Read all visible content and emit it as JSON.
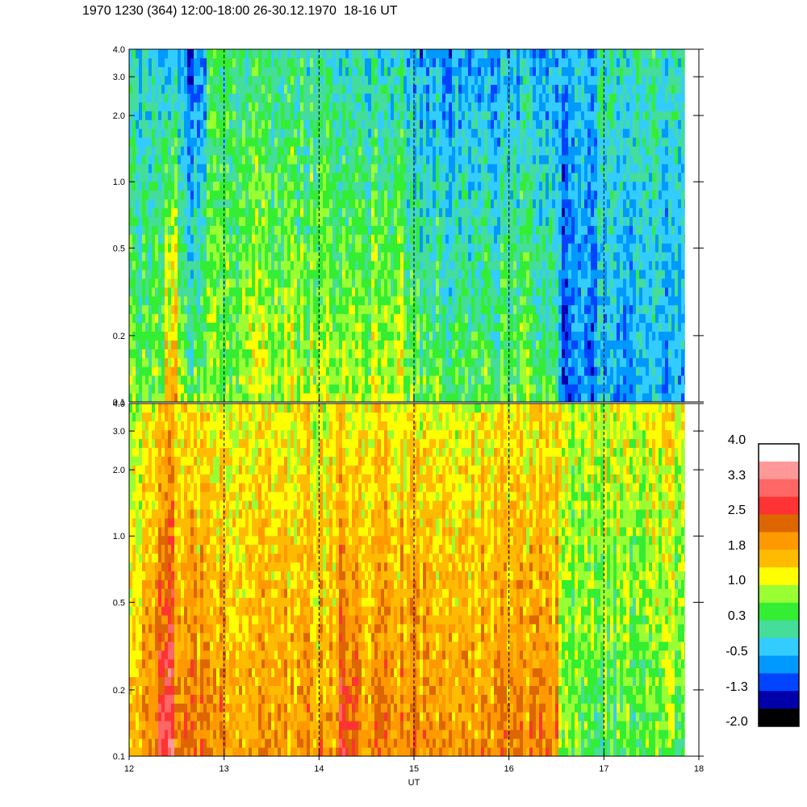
{
  "title": "1970 1230 (364) 12:00-18:00 26-30.12.1970  18-16 UT",
  "chart_data": [
    {
      "type": "heatmap",
      "panel": "upper",
      "x_range": [
        12,
        18
      ],
      "x_ticks": [
        "12",
        "13",
        "14",
        "15",
        "16",
        "17",
        "18"
      ],
      "y_scale": "log",
      "y_range": [
        0.1,
        4.0
      ],
      "y_ticks": [
        "0.1",
        "0.2",
        "0.5",
        "1.0",
        "2.0",
        "3.0",
        "4.0"
      ],
      "dashed_x_lines": [
        13,
        14,
        15,
        16,
        17
      ],
      "data_end_x": 17.85,
      "segments": [
        {
          "x0": 12.0,
          "x1": 12.35,
          "low_level": 0.6,
          "high_level": -0.3
        },
        {
          "x0": 12.35,
          "x1": 12.5,
          "low_level": 1.7,
          "high_level": -0.6
        },
        {
          "x0": 12.5,
          "x1": 12.8,
          "low_level": 0.6,
          "high_level": -1.0
        },
        {
          "x0": 12.8,
          "x1": 13.2,
          "low_level": 0.7,
          "high_level": 0.1
        },
        {
          "x0": 13.2,
          "x1": 14.2,
          "low_level": 0.9,
          "high_level": 0.0
        },
        {
          "x0": 14.2,
          "x1": 14.9,
          "low_level": 1.0,
          "high_level": -0.2
        },
        {
          "x0": 14.9,
          "x1": 15.5,
          "low_level": 0.5,
          "high_level": -0.7
        },
        {
          "x0": 15.5,
          "x1": 16.5,
          "low_level": 0.5,
          "high_level": -0.6
        },
        {
          "x0": 16.5,
          "x1": 16.9,
          "low_level": -1.0,
          "high_level": -0.6
        },
        {
          "x0": 16.9,
          "x1": 17.85,
          "low_level": -0.6,
          "high_level": 0.0
        }
      ]
    },
    {
      "type": "heatmap",
      "panel": "lower",
      "x_range": [
        12,
        18
      ],
      "x_ticks": [
        "12",
        "13",
        "14",
        "15",
        "16",
        "17",
        "18"
      ],
      "xlabel": "UT",
      "y_scale": "log",
      "y_range": [
        0.1,
        4.0
      ],
      "y_ticks": [
        "0.1",
        "0.2",
        "0.5",
        "1.0",
        "2.0",
        "3.0",
        "4.0"
      ],
      "dashed_x_lines": [
        13,
        14,
        15,
        16,
        17
      ],
      "data_end_x": 17.85,
      "segments": [
        {
          "x0": 12.0,
          "x1": 12.3,
          "low_level": 2.0,
          "high_level": 1.0
        },
        {
          "x0": 12.3,
          "x1": 12.45,
          "low_level": 3.0,
          "high_level": 1.5
        },
        {
          "x0": 12.45,
          "x1": 13.0,
          "low_level": 2.2,
          "high_level": 1.2
        },
        {
          "x0": 13.0,
          "x1": 14.2,
          "low_level": 2.0,
          "high_level": 1.2
        },
        {
          "x0": 14.2,
          "x1": 14.4,
          "low_level": 2.8,
          "high_level": 1.3
        },
        {
          "x0": 14.4,
          "x1": 16.5,
          "low_level": 2.1,
          "high_level": 1.2
        },
        {
          "x0": 16.5,
          "x1": 16.8,
          "low_level": 0.5,
          "high_level": 0.9
        },
        {
          "x0": 16.8,
          "x1": 17.85,
          "low_level": 0.4,
          "high_level": 1.1
        }
      ]
    }
  ],
  "colorbar": {
    "labels": [
      "4.0",
      "3.3",
      "2.5",
      "1.8",
      "1.0",
      "0.3",
      "-0.5",
      "-1.3",
      "-2.0"
    ],
    "colors": [
      "#ffffff",
      "#ff9999",
      "#ff6666",
      "#ff3333",
      "#dd6600",
      "#ff9900",
      "#ffbb00",
      "#ffff00",
      "#99ff33",
      "#33ee33",
      "#44dd99",
      "#33ccff",
      "#0099ff",
      "#0044ff",
      "#0000aa",
      "#000000"
    ]
  }
}
